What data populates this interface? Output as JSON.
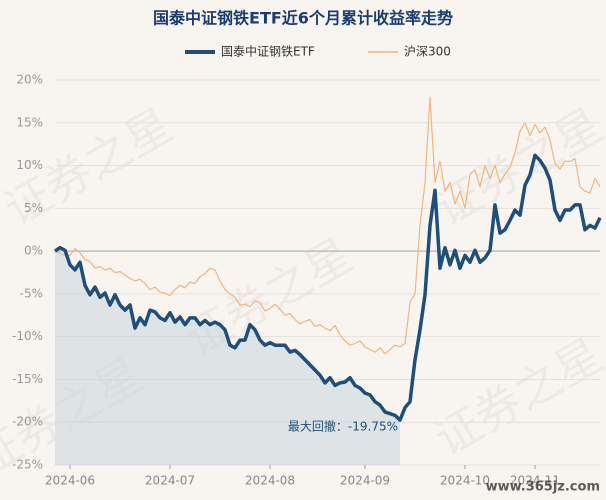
{
  "chart_data": {
    "type": "line",
    "title": "国泰中证钢铁ETF近6个月累计收益率走势",
    "annotation": "最大回撤：-19.75%",
    "watermark": "证券之星",
    "site_mark": "www.365jz.com",
    "x": [
      0,
      1,
      2,
      3,
      4,
      5,
      6,
      7,
      8,
      9,
      10,
      11,
      12,
      13,
      14,
      15,
      16,
      17,
      18,
      19,
      20,
      21,
      22,
      23,
      24,
      25,
      26,
      27,
      28,
      29,
      30,
      31,
      32,
      33,
      34,
      35,
      36,
      37,
      38,
      39,
      40,
      41,
      42,
      43,
      44,
      45,
      46,
      47,
      48,
      49,
      50,
      51,
      52,
      53,
      54,
      55,
      56,
      57,
      58,
      59,
      60,
      61,
      62,
      63,
      64,
      65,
      66,
      67,
      68,
      69,
      70,
      71,
      72,
      73,
      74,
      75,
      76,
      77,
      78,
      79,
      80,
      81,
      82,
      83,
      84,
      85,
      86,
      87,
      88,
      89,
      90,
      91,
      92,
      93,
      94,
      95,
      96,
      97,
      98,
      99,
      100,
      101,
      102,
      103,
      104,
      105,
      106,
      107,
      108,
      109
    ],
    "xlim": [
      0,
      109
    ],
    "xticks": [
      {
        "value": 3,
        "label": "2024-06"
      },
      {
        "value": 23,
        "label": "2024-07"
      },
      {
        "value": 43,
        "label": "2024-08"
      },
      {
        "value": 62,
        "label": "2024-09"
      },
      {
        "value": 82,
        "label": "2024-10"
      },
      {
        "value": 96,
        "label": "2024-11"
      }
    ],
    "ylim": [
      -25,
      20
    ],
    "yticks": [
      {
        "value": 20,
        "label": "20%"
      },
      {
        "value": 15,
        "label": "15%"
      },
      {
        "value": 10,
        "label": "10%"
      },
      {
        "value": 5,
        "label": "5%"
      },
      {
        "value": 0,
        "label": "0%"
      },
      {
        "value": -5,
        "label": "-5%"
      },
      {
        "value": -10,
        "label": "-10%"
      },
      {
        "value": -15,
        "label": "-15%"
      },
      {
        "value": -20,
        "label": "-20%"
      },
      {
        "value": -25,
        "label": "-25%"
      }
    ],
    "grid": true,
    "series": [
      {
        "name": "国泰中证钢铁ETF",
        "color": "#1f4e79",
        "values": [
          0,
          0.4,
          0.1,
          -1.6,
          -2.2,
          -1.3,
          -4.0,
          -5.1,
          -4.2,
          -5.4,
          -4.9,
          -6.3,
          -5.1,
          -6.3,
          -6.9,
          -6.3,
          -9.0,
          -7.8,
          -8.6,
          -6.9,
          -7.1,
          -7.8,
          -8.1,
          -7.2,
          -8.3,
          -7.7,
          -8.6,
          -7.8,
          -7.8,
          -8.6,
          -8.1,
          -8.6,
          -8.3,
          -8.6,
          -9.2,
          -11.0,
          -11.3,
          -10.4,
          -10.4,
          -8.6,
          -9.2,
          -10.4,
          -11.0,
          -10.7,
          -11.0,
          -11.0,
          -11.0,
          -11.8,
          -11.6,
          -12.1,
          -12.7,
          -13.3,
          -13.9,
          -14.5,
          -15.4,
          -14.8,
          -15.7,
          -15.4,
          -15.3,
          -14.8,
          -15.7,
          -16.0,
          -16.6,
          -16.8,
          -17.6,
          -18.0,
          -18.8,
          -19.0,
          -19.2,
          -19.75,
          -18.3,
          -17.6,
          -12.7,
          -9.2,
          -5.1,
          3.0,
          7.1,
          -2.0,
          0.4,
          -1.6,
          0.1,
          -2.0,
          -0.5,
          -1.3,
          0.1,
          -1.3,
          -0.8,
          0.1,
          5.4,
          2.1,
          2.5,
          3.6,
          4.8,
          4.2,
          7.7,
          8.9,
          11.2,
          10.6,
          9.7,
          8.3,
          4.8,
          3.6,
          4.8,
          4.8,
          5.4,
          5.4,
          2.5,
          3.0,
          2.7,
          3.9
        ]
      },
      {
        "name": "沪深300",
        "color": "#f2b57e",
        "values": [
          0,
          -0.3,
          -0.5,
          -0.5,
          0.3,
          -0.2,
          -1.0,
          -1.2,
          -2.0,
          -1.8,
          -2.2,
          -2.0,
          -2.5,
          -2.4,
          -2.8,
          -3.2,
          -3.5,
          -3.3,
          -3.8,
          -4.5,
          -4.2,
          -4.8,
          -4.9,
          -5.2,
          -4.5,
          -4.0,
          -4.3,
          -3.6,
          -3.8,
          -3.0,
          -2.6,
          -2.0,
          -2.2,
          -3.5,
          -4.5,
          -5.0,
          -5.4,
          -6.3,
          -6.2,
          -6.5,
          -5.8,
          -6.0,
          -7.0,
          -6.7,
          -6.2,
          -6.8,
          -7.5,
          -7.3,
          -8.0,
          -8.5,
          -8.2,
          -8.0,
          -8.8,
          -8.6,
          -9.0,
          -9.3,
          -8.7,
          -9.8,
          -10.5,
          -11.0,
          -10.8,
          -10.5,
          -11.2,
          -11.5,
          -11.8,
          -11.3,
          -12.0,
          -11.5,
          -11.0,
          -11.2,
          -10.8,
          -6.0,
          -5.0,
          3.0,
          8.0,
          18.0,
          8.0,
          10.5,
          7.0,
          8.0,
          5.5,
          7.0,
          5.0,
          9.0,
          9.5,
          7.5,
          10.0,
          8.5,
          10.0,
          8.0,
          9.0,
          9.8,
          11.5,
          14.0,
          15.0,
          13.5,
          14.8,
          13.8,
          14.5,
          13.0,
          10.2,
          9.6,
          10.5,
          10.5,
          10.8,
          7.5,
          7.0,
          6.8,
          8.5,
          7.5
        ]
      }
    ]
  }
}
